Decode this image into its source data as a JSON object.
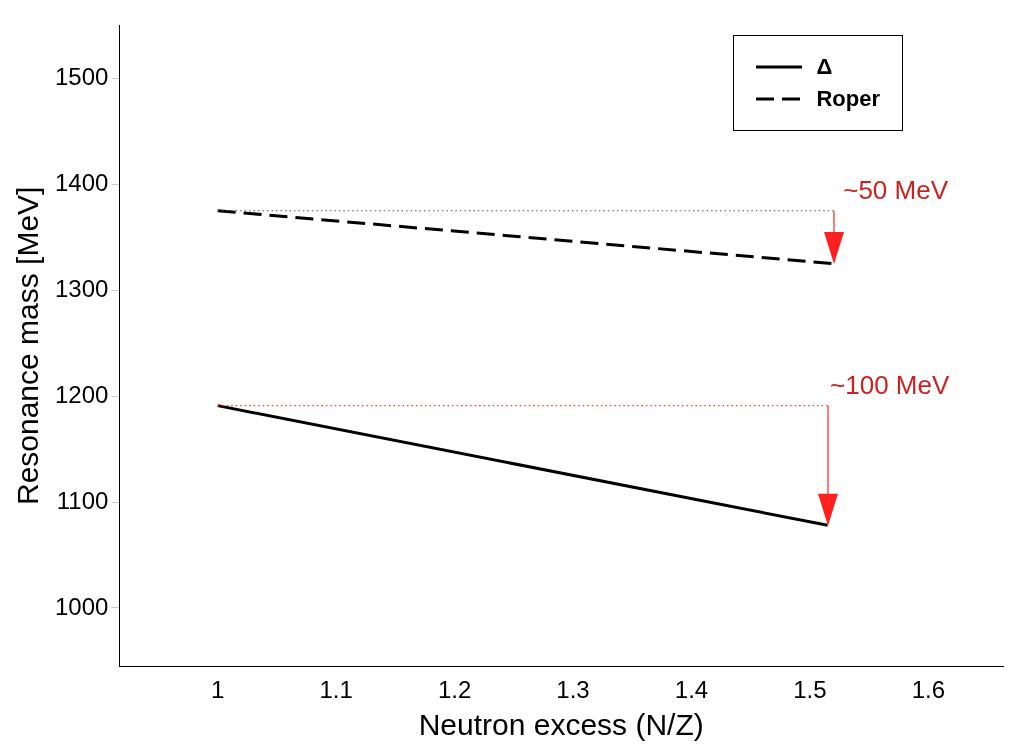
{
  "chart_data": {
    "type": "line",
    "xlabel": "Neutron excess (N/Z)",
    "ylabel": "Resonance mass [MeV]",
    "xlim": [
      0.917,
      1.663
    ],
    "xticks": [
      1,
      1.1,
      1.2,
      1.3,
      1.4,
      1.5,
      1.6
    ],
    "ylim": [
      945,
      1550
    ],
    "yticks": [
      1000,
      1100,
      1200,
      1300,
      1400,
      1500
    ],
    "grid": false,
    "legend": "top right",
    "marker": "none",
    "series": [
      {
        "name": "Δ",
        "color": "#000000",
        "x": [
          1,
          1.515
        ],
        "values": [
          1191,
          1078
        ],
        "line_style": "solid"
      },
      {
        "name": "Roper",
        "color": "#000000",
        "x": [
          1,
          1.52
        ],
        "values": [
          1375,
          1325
        ],
        "line_style": "dashed"
      },
      {
        "color": "#555555",
        "x": [
          1,
          1.52
        ],
        "values": [
          1375,
          1375
        ],
        "line_style": "dotted"
      },
      {
        "color": "#ff3333",
        "x": [
          1,
          1.515
        ],
        "values": [
          1191,
          1191
        ],
        "line_style": "dotted"
      }
    ],
    "annotations": [
      {
        "text": "~50 MeV",
        "x": 1.52,
        "y": 1375
      },
      {
        "text": "~100 MeV",
        "x": 1.515,
        "y": 1191
      }
    ]
  }
}
